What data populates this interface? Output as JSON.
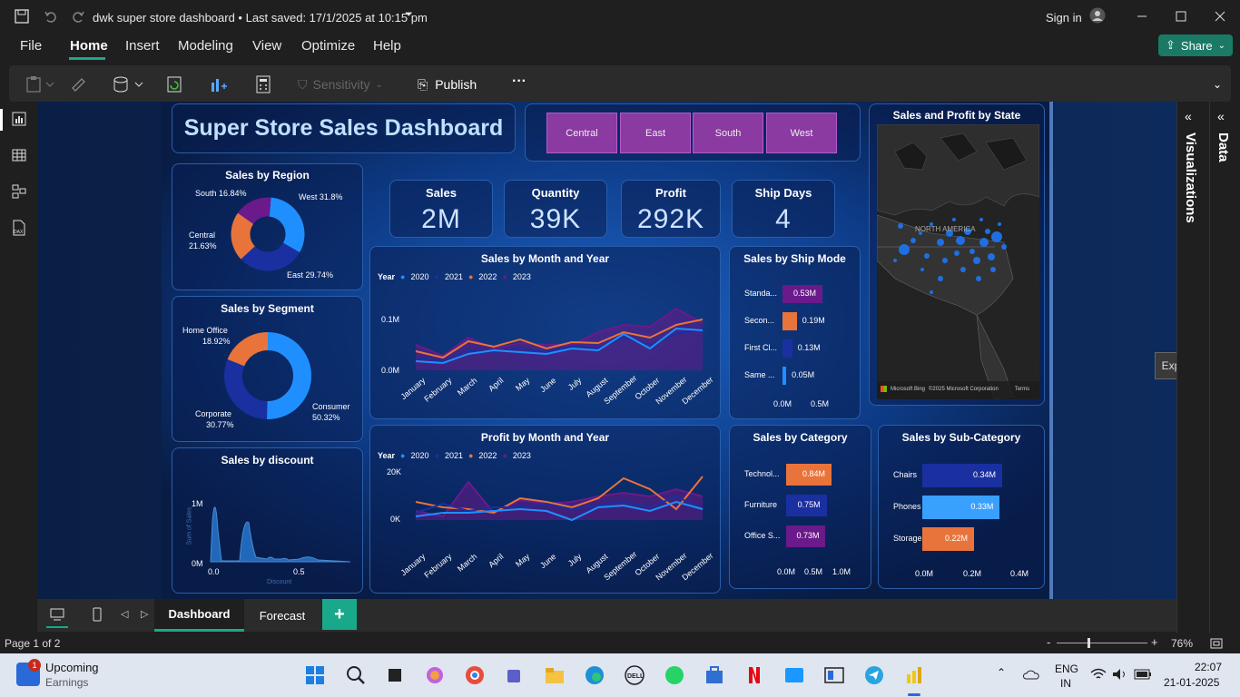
{
  "window": {
    "title": "dwk super store dashboard • Last saved: 17/1/2025 at 10:15 pm",
    "sign_in": "Sign in",
    "share": "Share"
  },
  "menu": [
    "File",
    "Home",
    "Insert",
    "Modeling",
    "View",
    "Optimize",
    "Help"
  ],
  "ribbon": {
    "sensitivity": "Sensitivity",
    "publish": "Publish",
    "more": "···"
  },
  "dashboard": {
    "title": "Super Store Sales Dashboard",
    "regions": [
      "Central",
      "East",
      "South",
      "West"
    ],
    "kpis": [
      {
        "label": "Sales",
        "value": "2M"
      },
      {
        "label": "Quantity",
        "value": "39K"
      },
      {
        "label": "Profit",
        "value": "292K"
      },
      {
        "label": "Ship Days",
        "value": "4"
      }
    ],
    "region_chart": {
      "title": "Sales by Region",
      "labels": [
        "South 16.84%",
        "West 31.8%",
        "Central",
        "21.63%",
        "East 29.74%"
      ]
    },
    "segment_chart": {
      "title": "Sales by Segment",
      "labels": [
        "Home Office",
        "18.92%",
        "Corporate",
        "30.77%",
        "Consumer",
        "50.32%"
      ]
    },
    "discount_chart": {
      "title": "Sales by discount",
      "y_ticks": [
        "1M",
        "0M"
      ],
      "x_ticks": [
        "0.0",
        "0.5"
      ],
      "ylabel": "Sum of Sales",
      "xlabel": "Discount"
    },
    "sales_month": {
      "title": "Sales by Month and Year",
      "legend_title": "Year",
      "legend": [
        "2020",
        "2021",
        "2022",
        "2023"
      ],
      "y_ticks": [
        "0.1M",
        "0.0M"
      ],
      "months": [
        "January",
        "February",
        "March",
        "April",
        "May",
        "June",
        "July",
        "August",
        "September",
        "October",
        "November",
        "December"
      ]
    },
    "profit_month": {
      "title": "Profit by Month and Year",
      "legend_title": "Year",
      "legend": [
        "2020",
        "2021",
        "2022",
        "2023"
      ],
      "y_ticks": [
        "20K",
        "0K"
      ]
    },
    "ship_mode": {
      "title": "Sales by Ship Mode",
      "rows": [
        {
          "label": "Standa...",
          "value": "0.53M"
        },
        {
          "label": "Secon...",
          "value": "0.19M"
        },
        {
          "label": "First Cl...",
          "value": "0.13M"
        },
        {
          "label": "Same ...",
          "value": "0.05M"
        }
      ],
      "x_ticks": [
        "0.0M",
        "0.5M"
      ]
    },
    "category": {
      "title": "Sales by Category",
      "rows": [
        {
          "label": "Technol...",
          "value": "0.84M"
        },
        {
          "label": "Furniture",
          "value": "0.75M"
        },
        {
          "label": "Office S...",
          "value": "0.73M"
        }
      ],
      "x_ticks": [
        "0.0M",
        "0.5M",
        "1.0M"
      ]
    },
    "subcategory": {
      "title": "Sales by Sub-Category",
      "rows": [
        {
          "label": "Chairs",
          "value": "0.34M"
        },
        {
          "label": "Phones",
          "value": "0.33M"
        },
        {
          "label": "Storage",
          "value": "0.22M"
        }
      ],
      "x_ticks": [
        "0.0M",
        "0.2M",
        "0.4M"
      ]
    },
    "map": {
      "title": "Sales and Profit by State",
      "label": "NORTH AMERICA",
      "credit": "Microsoft Bing",
      "copyright": "©2025 Microsoft Corporation",
      "terms": "Terms"
    }
  },
  "side_panels": {
    "visualizations": "Visualizations",
    "data": "Data",
    "expand": "Expand"
  },
  "tabs": [
    "Dashboard",
    "Forecast"
  ],
  "status": {
    "page": "Page 1 of 2",
    "zoom": "76%"
  },
  "taskbar": {
    "widget_title": "Upcoming",
    "widget_sub": "Earnings",
    "badge": "1",
    "lang1": "ENG",
    "lang2": "IN",
    "time": "22:07",
    "date": "21-01-2025"
  },
  "chart_data": [
    {
      "type": "pie",
      "title": "Sales by Region",
      "categories": [
        "South",
        "West",
        "Central",
        "East"
      ],
      "values": [
        16.84,
        31.8,
        21.63,
        29.74
      ]
    },
    {
      "type": "pie",
      "title": "Sales by Segment",
      "categories": [
        "Home Office",
        "Corporate",
        "Consumer"
      ],
      "values": [
        18.92,
        30.77,
        50.32
      ]
    },
    {
      "type": "bar",
      "title": "Sales by Ship Mode",
      "categories": [
        "Standa...",
        "Secon...",
        "First Cl...",
        "Same ..."
      ],
      "values": [
        0.53,
        0.19,
        0.13,
        0.05
      ]
    },
    {
      "type": "bar",
      "title": "Sales by Category",
      "categories": [
        "Technol...",
        "Furniture",
        "Office S..."
      ],
      "values": [
        0.84,
        0.75,
        0.73
      ]
    },
    {
      "type": "bar",
      "title": "Sales by Sub-Category",
      "categories": [
        "Chairs",
        "Phones",
        "Storage"
      ],
      "values": [
        0.34,
        0.33,
        0.22
      ]
    }
  ],
  "colors": {
    "accent": "#1aa88a",
    "canvas": "#0f2a57",
    "c2020": "#1f8fff",
    "c2021": "#1a2fa0",
    "c2022": "#e8743b",
    "c2023": "#6a1a8a"
  }
}
